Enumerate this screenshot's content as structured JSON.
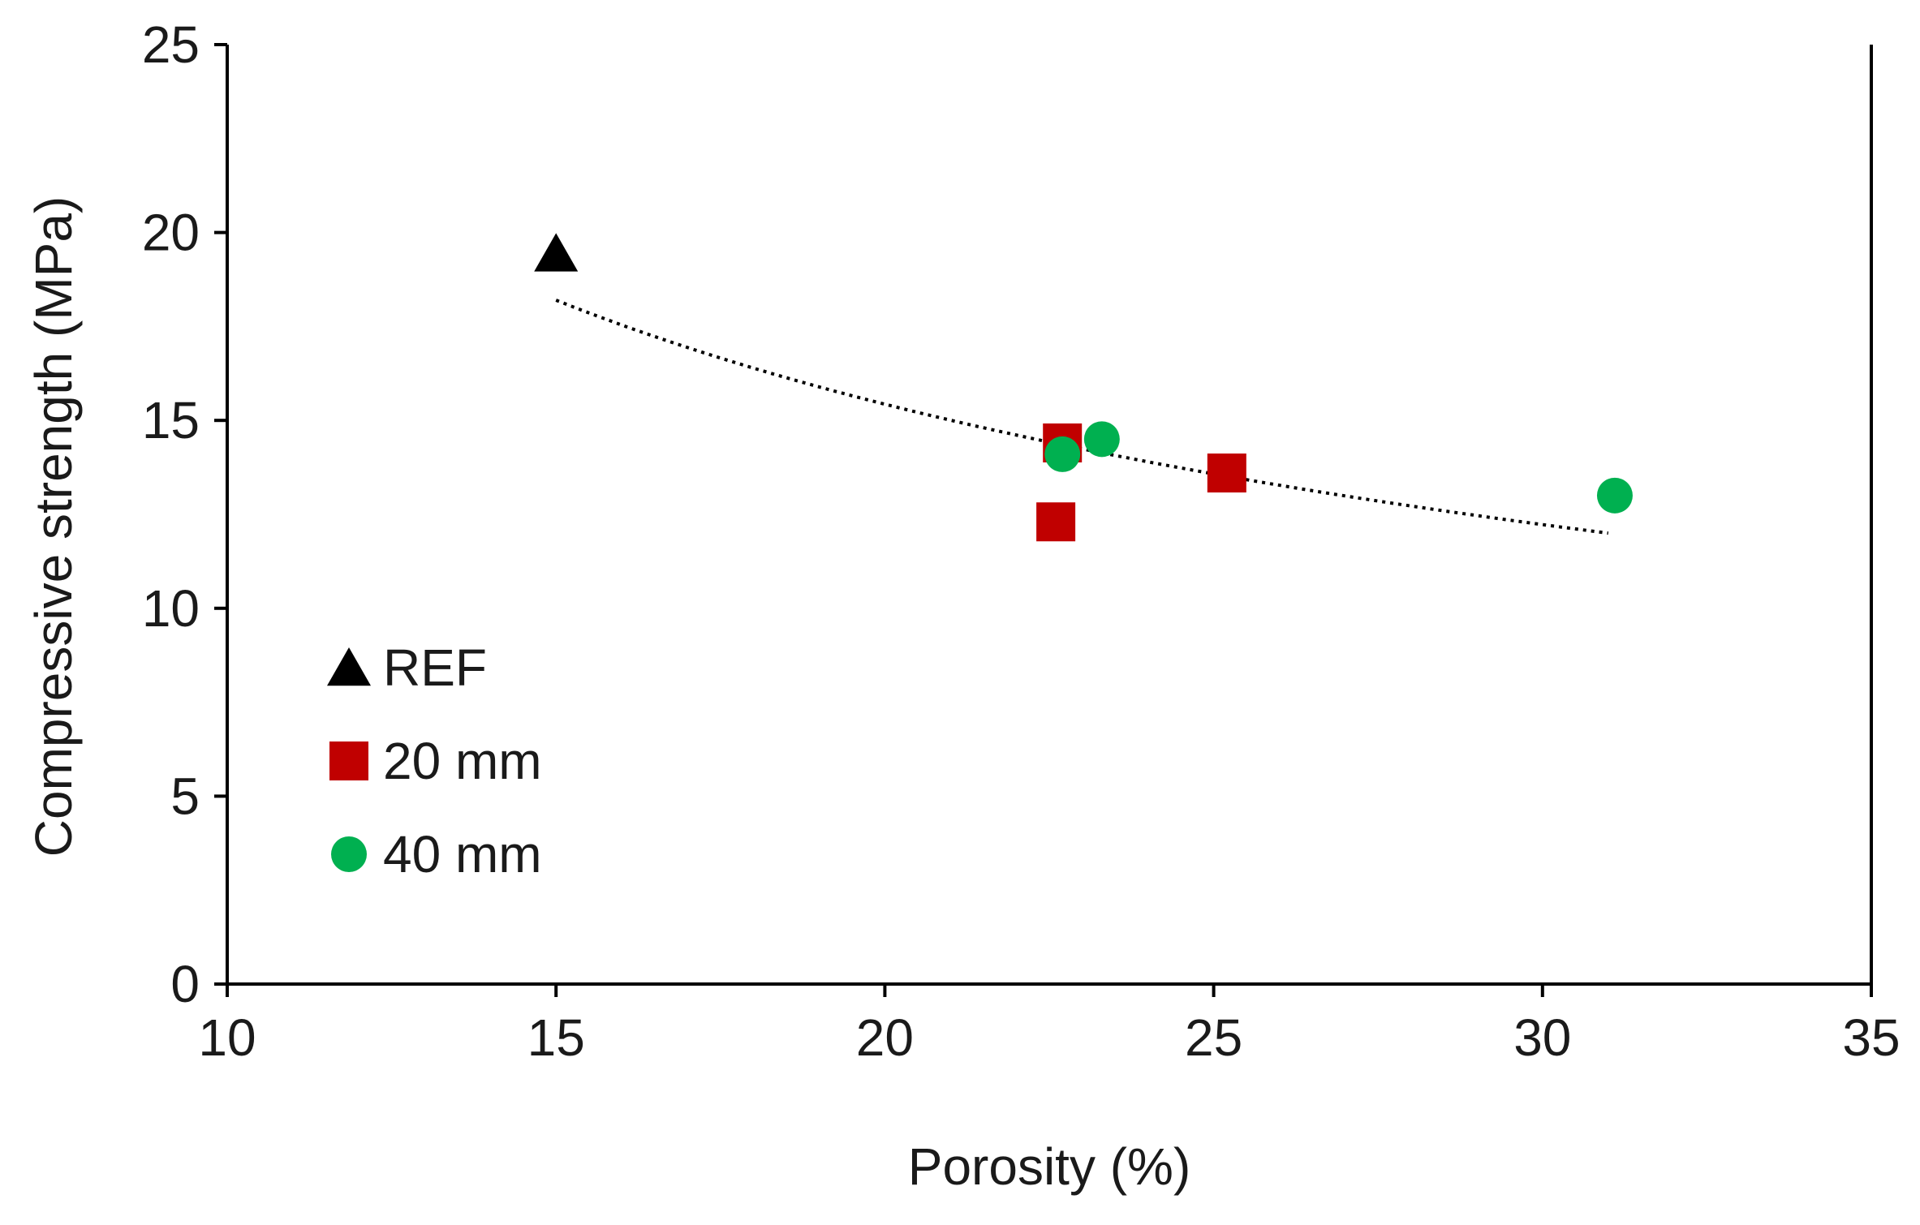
{
  "chart_data": {
    "type": "scatter",
    "title": "",
    "xlabel": "Porosity (%)",
    "ylabel": "Compressive strength (MPa)",
    "xlim": [
      10,
      35
    ],
    "ylim": [
      0,
      25
    ],
    "xticks": [
      10,
      15,
      20,
      25,
      30,
      35
    ],
    "yticks": [
      0,
      5,
      10,
      15,
      20,
      25
    ],
    "x_tick_labels": [
      "10",
      "15",
      "20",
      "25",
      "30",
      "35"
    ],
    "y_tick_labels": [
      "0",
      "5",
      "10",
      "15",
      "20",
      "25"
    ],
    "grid": false,
    "legend_position": "lower-left",
    "series": [
      {
        "name": "REF",
        "marker": "triangle",
        "color": "#000000",
        "points": [
          {
            "x": 15.0,
            "y": 19.4
          }
        ]
      },
      {
        "name": "20 mm",
        "marker": "square",
        "color": "#c00000",
        "points": [
          {
            "x": 22.7,
            "y": 14.4
          },
          {
            "x": 22.6,
            "y": 12.3
          },
          {
            "x": 25.2,
            "y": 13.6
          }
        ]
      },
      {
        "name": "40 mm",
        "marker": "circle",
        "color": "#00b050",
        "points": [
          {
            "x": 22.7,
            "y": 14.1
          },
          {
            "x": 23.3,
            "y": 14.5
          },
          {
            "x": 31.1,
            "y": 13.0
          }
        ]
      }
    ],
    "trendline": {
      "style": "dotted",
      "color": "#000000",
      "type": "power",
      "x_start": 15.0,
      "x_end": 31.0,
      "y_start": 18.2,
      "y_end": 12.0
    }
  }
}
